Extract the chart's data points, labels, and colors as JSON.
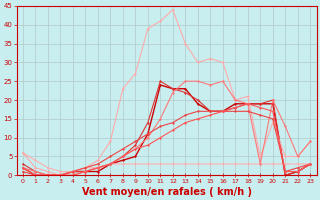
{
  "background_color": "#c8eef0",
  "grid_color": "#b0c8c8",
  "xlabel": "Vent moyen/en rafales ( km/h )",
  "xlabel_color": "#cc0000",
  "tick_color": "#cc0000",
  "xlabel_fontsize": 7,
  "ylabel_ticks": [
    0,
    5,
    10,
    15,
    20,
    25,
    30,
    35,
    40,
    45
  ],
  "xlim": [
    -0.5,
    23.5
  ],
  "ylim": [
    0,
    45
  ],
  "x_ticks": [
    0,
    1,
    2,
    3,
    4,
    5,
    6,
    7,
    8,
    9,
    10,
    11,
    12,
    13,
    14,
    15,
    16,
    17,
    18,
    19,
    20,
    21,
    22,
    23
  ],
  "series": [
    {
      "x": [
        0,
        1,
        2,
        3,
        4,
        5,
        6,
        7,
        8,
        9,
        10,
        11,
        12,
        13,
        14,
        15,
        16,
        17,
        18,
        19,
        20,
        21,
        22,
        23
      ],
      "y": [
        2,
        0,
        0,
        0,
        1,
        1,
        1,
        3,
        4,
        5,
        11,
        24,
        23,
        23,
        19,
        17,
        17,
        19,
        19,
        19,
        19,
        0,
        1,
        3
      ],
      "color": "#cc0000",
      "marker": "D",
      "markersize": 1.5,
      "linewidth": 1.0
    },
    {
      "x": [
        0,
        1,
        2,
        3,
        4,
        5,
        6,
        7,
        8,
        9,
        10,
        11,
        12,
        13,
        14,
        15,
        16,
        17,
        18,
        19,
        20,
        21,
        22,
        23
      ],
      "y": [
        3,
        1,
        0,
        0,
        1,
        1,
        2,
        3,
        5,
        8,
        14,
        25,
        23,
        22,
        20,
        17,
        17,
        18,
        19,
        19,
        20,
        0,
        1,
        3
      ],
      "color": "#dd3333",
      "marker": "D",
      "markersize": 1.5,
      "linewidth": 0.8
    },
    {
      "x": [
        0,
        1,
        2,
        3,
        4,
        5,
        6,
        7,
        8,
        9,
        10,
        11,
        12,
        13,
        14,
        15,
        16,
        17,
        18,
        19,
        20,
        21,
        22,
        23
      ],
      "y": [
        6,
        4,
        2,
        1,
        1,
        2,
        2,
        3,
        3,
        3,
        3,
        3,
        3,
        3,
        3,
        3,
        3,
        3,
        3,
        3,
        3,
        3,
        3,
        3
      ],
      "color": "#ffb0b0",
      "marker": "D",
      "markersize": 1.5,
      "linewidth": 0.8
    },
    {
      "x": [
        0,
        1,
        2,
        3,
        4,
        5,
        6,
        7,
        8,
        9,
        10,
        11,
        12,
        13,
        14,
        15,
        16,
        17,
        18,
        19,
        20,
        21,
        22,
        23
      ],
      "y": [
        6,
        2,
        1,
        0,
        1,
        2,
        4,
        9,
        23,
        27,
        39,
        41,
        44,
        35,
        30,
        31,
        30,
        20,
        21,
        5,
        14,
        5,
        5,
        9
      ],
      "color": "#ffaaaa",
      "marker": "D",
      "markersize": 1.5,
      "linewidth": 0.8
    },
    {
      "x": [
        0,
        1,
        2,
        3,
        4,
        5,
        6,
        7,
        8,
        9,
        10,
        11,
        12,
        13,
        14,
        15,
        16,
        17,
        18,
        19,
        20,
        21,
        22,
        23
      ],
      "y": [
        2,
        1,
        0,
        0,
        0,
        1,
        2,
        3,
        5,
        7,
        10,
        15,
        22,
        25,
        25,
        24,
        25,
        20,
        19,
        3,
        20,
        13,
        5,
        9
      ],
      "color": "#ff7777",
      "marker": "D",
      "markersize": 1.5,
      "linewidth": 0.8
    },
    {
      "x": [
        0,
        1,
        2,
        3,
        4,
        5,
        6,
        7,
        8,
        9,
        10,
        11,
        12,
        13,
        14,
        15,
        16,
        17,
        18,
        19,
        20,
        21,
        22,
        23
      ],
      "y": [
        1,
        0,
        0,
        0,
        1,
        2,
        3,
        5,
        7,
        9,
        11,
        13,
        14,
        16,
        17,
        17,
        17,
        17,
        17,
        16,
        15,
        1,
        2,
        3
      ],
      "color": "#ee4444",
      "marker": "D",
      "markersize": 1.5,
      "linewidth": 0.8
    },
    {
      "x": [
        0,
        1,
        2,
        3,
        4,
        5,
        6,
        7,
        8,
        9,
        10,
        11,
        12,
        13,
        14,
        15,
        16,
        17,
        18,
        19,
        20,
        21,
        22,
        23
      ],
      "y": [
        2,
        0,
        0,
        0,
        0,
        1,
        2,
        3,
        5,
        7,
        8,
        10,
        12,
        14,
        15,
        16,
        17,
        18,
        19,
        18,
        17,
        1,
        1,
        3
      ],
      "color": "#ff5555",
      "marker": "D",
      "markersize": 1.5,
      "linewidth": 0.8
    }
  ]
}
